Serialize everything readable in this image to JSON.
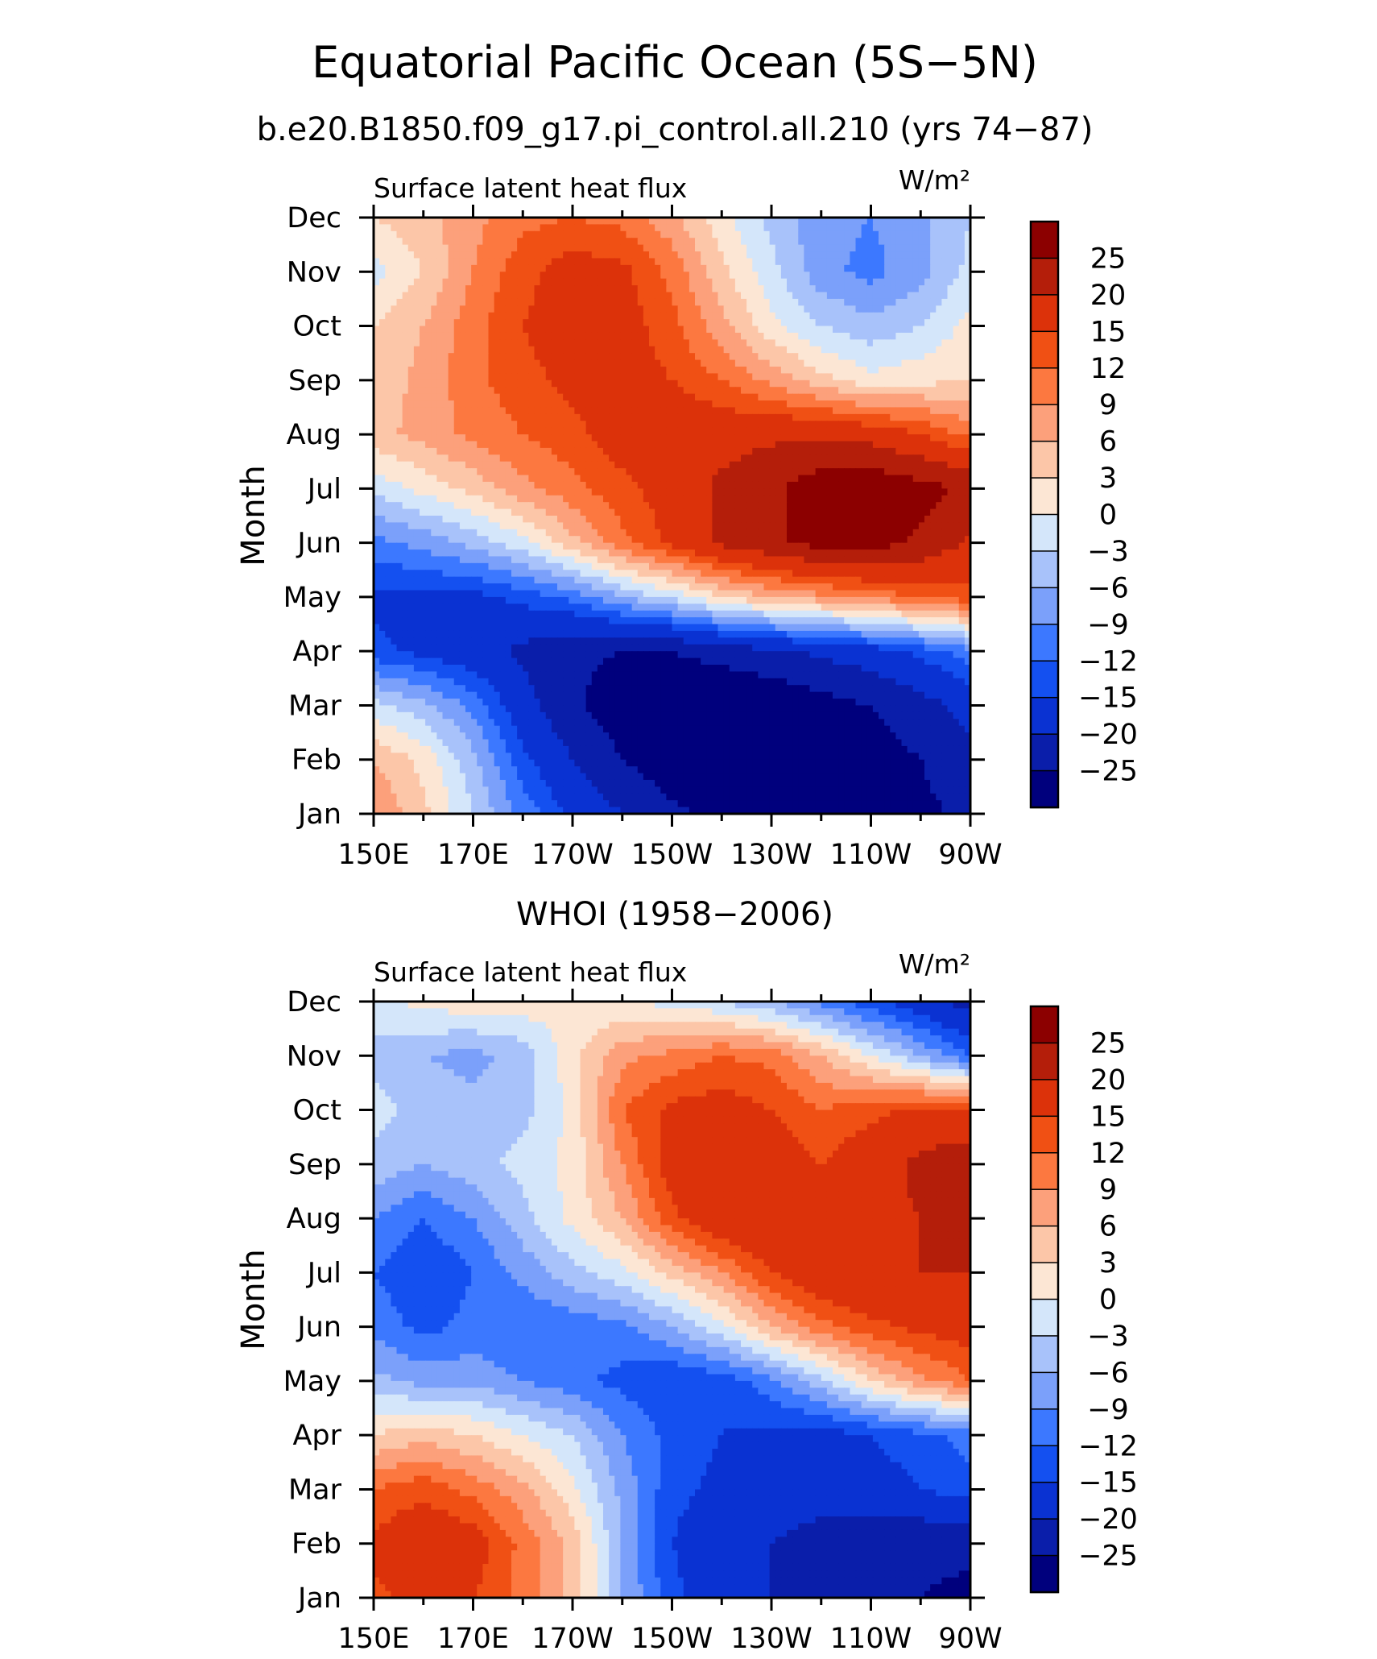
{
  "figure": {
    "title": "Equatorial Pacific Ocean (5S−5N)"
  },
  "chart_data": [
    {
      "type": "heatmap",
      "title": "b.e20.B1850.f09_g17.pi_control.all.210 (yrs 74−87)",
      "subtitle_left": "Surface latent heat flux",
      "units": "W/m²",
      "xlabel": "",
      "ylabel": "Month",
      "x_tick_labels": [
        "150E",
        "170E",
        "170W",
        "150W",
        "130W",
        "110W",
        "90W"
      ],
      "x_longitudes_deg_east": [
        150,
        170,
        190,
        210,
        230,
        250,
        270
      ],
      "xlim": [
        150,
        270
      ],
      "y_tick_labels": [
        "Jan",
        "Feb",
        "Mar",
        "Apr",
        "May",
        "Jun",
        "Jul",
        "Aug",
        "Sep",
        "Oct",
        "Nov",
        "Dec"
      ],
      "contour_levels": [
        -25,
        -20,
        -15,
        -12,
        -9,
        -6,
        -3,
        0,
        3,
        6,
        9,
        12,
        15,
        20,
        25
      ],
      "colorbar_labels": [
        "25",
        "20",
        "15",
        "12",
        "9",
        "6",
        "3",
        "0",
        "−3",
        "−6",
        "−9",
        "−12",
        "−15",
        "−20",
        "−25"
      ],
      "colors": [
        "#00007d",
        "#0a1eaa",
        "#0a32d2",
        "#1450f0",
        "#3c78ff",
        "#7ba0fa",
        "#a8c2fa",
        "#d4e6fa",
        "#fce6d4",
        "#fcc6a8",
        "#fca07b",
        "#fc7840",
        "#f05014",
        "#dc320a",
        "#b41e0a",
        "#8c0000"
      ],
      "z": [
        [
          9,
          4,
          -3,
          -10,
          -16,
          -20,
          -24,
          -26,
          -28,
          -28,
          -27,
          -26,
          -24
        ],
        [
          6,
          2,
          -5,
          -14,
          -20,
          -25,
          -28,
          -30,
          -30,
          -29,
          -27,
          -25,
          -22
        ],
        [
          -2,
          -5,
          -10,
          -18,
          -24,
          -28,
          -30,
          -30,
          -29,
          -27,
          -25,
          -22,
          -18
        ],
        [
          -14,
          -16,
          -18,
          -21,
          -24,
          -25,
          -25,
          -23,
          -21,
          -19,
          -17,
          -14,
          -10
        ],
        [
          -16,
          -16,
          -16,
          -14,
          -11,
          -6,
          -2,
          3,
          6,
          8,
          10,
          12,
          14
        ],
        [
          -10,
          -8,
          -5,
          -1,
          5,
          11,
          16,
          21,
          24,
          27,
          27,
          24,
          19
        ],
        [
          -2,
          1,
          4,
          8,
          11,
          14,
          17,
          21,
          24,
          28,
          29,
          27,
          24
        ],
        [
          5,
          7,
          10,
          12,
          14,
          17,
          18,
          18,
          19,
          19,
          18,
          15,
          11
        ],
        [
          4,
          7,
          11,
          14,
          16,
          17,
          15,
          12,
          8,
          4,
          1,
          2,
          3
        ],
        [
          3,
          6,
          11,
          15,
          17,
          17,
          13,
          7,
          1,
          -3,
          -5,
          -3,
          1
        ],
        [
          -1,
          3,
          9,
          14,
          17,
          16,
          11,
          4,
          -2,
          -8,
          -10,
          -7,
          -2
        ],
        [
          3,
          5,
          8,
          11,
          12,
          11,
          7,
          1,
          -4,
          -8,
          -9,
          -7,
          -3
        ]
      ]
    },
    {
      "type": "heatmap",
      "title": "WHOI (1958−2006)",
      "subtitle_left": "Surface latent heat flux",
      "units": "W/m²",
      "xlabel": "",
      "ylabel": "Month",
      "x_tick_labels": [
        "150E",
        "170E",
        "170W",
        "150W",
        "130W",
        "110W",
        "90W"
      ],
      "x_longitudes_deg_east": [
        150,
        170,
        190,
        210,
        230,
        250,
        270
      ],
      "xlim": [
        150,
        270
      ],
      "y_tick_labels": [
        "Jan",
        "Feb",
        "Mar",
        "Apr",
        "May",
        "Jun",
        "Jul",
        "Aug",
        "Sep",
        "Oct",
        "Nov",
        "Dec"
      ],
      "contour_levels": [
        -25,
        -20,
        -15,
        -12,
        -9,
        -6,
        -3,
        0,
        3,
        6,
        9,
        12,
        15,
        20,
        25
      ],
      "colorbar_labels": [
        "25",
        "20",
        "15",
        "12",
        "9",
        "6",
        "3",
        "0",
        "−3",
        "−6",
        "−9",
        "−12",
        "−15",
        "−20",
        "−25"
      ],
      "colors": [
        "#00007d",
        "#0a1eaa",
        "#0a32d2",
        "#1450f0",
        "#3c78ff",
        "#7ba0fa",
        "#a8c2fa",
        "#d4e6fa",
        "#fce6d4",
        "#fcc6a8",
        "#fca07b",
        "#fc7840",
        "#f05014",
        "#dc320a",
        "#b41e0a",
        "#8c0000"
      ],
      "z": [
        [
          14,
          17,
          15,
          11,
          5,
          -6,
          -14,
          -18,
          -20,
          -22,
          -23,
          -25,
          -26
        ],
        [
          16,
          19,
          17,
          11,
          5,
          -6,
          -15,
          -18,
          -20,
          -22,
          -23,
          -24,
          -24
        ],
        [
          12,
          14,
          11,
          7,
          1,
          -7,
          -14,
          -16,
          -17,
          -18,
          -17,
          -15,
          -13
        ],
        [
          3,
          5,
          3,
          0,
          -3,
          -9,
          -13,
          -15,
          -16,
          -17,
          -15,
          -13,
          -11
        ],
        [
          -5,
          -7,
          -7,
          -9,
          -11,
          -13,
          -15,
          -14,
          -10,
          -4,
          3,
          8,
          12
        ],
        [
          -10,
          -13,
          -11,
          -12,
          -11,
          -10,
          -6,
          -1,
          6,
          11,
          14,
          16,
          17
        ],
        [
          -12,
          -15,
          -12,
          -8,
          -4,
          -1,
          4,
          9,
          15,
          19,
          20,
          20,
          20
        ],
        [
          -9,
          -12,
          -9,
          -4,
          1,
          6,
          14,
          19,
          20,
          17,
          19,
          20,
          21
        ],
        [
          -4,
          -6,
          -4,
          -2,
          1,
          9,
          17,
          19,
          18,
          15,
          18,
          21,
          24
        ],
        [
          -2,
          -4,
          -5,
          -4,
          1,
          12,
          16,
          17,
          15,
          12,
          14,
          16,
          15
        ],
        [
          -4,
          -6,
          -7,
          -5,
          2,
          8,
          10,
          12,
          11,
          6,
          0,
          -6,
          -12
        ],
        [
          -1,
          1,
          2,
          2,
          1,
          0,
          -1,
          -3,
          -6,
          -10,
          -14,
          -18,
          -22
        ]
      ]
    }
  ]
}
